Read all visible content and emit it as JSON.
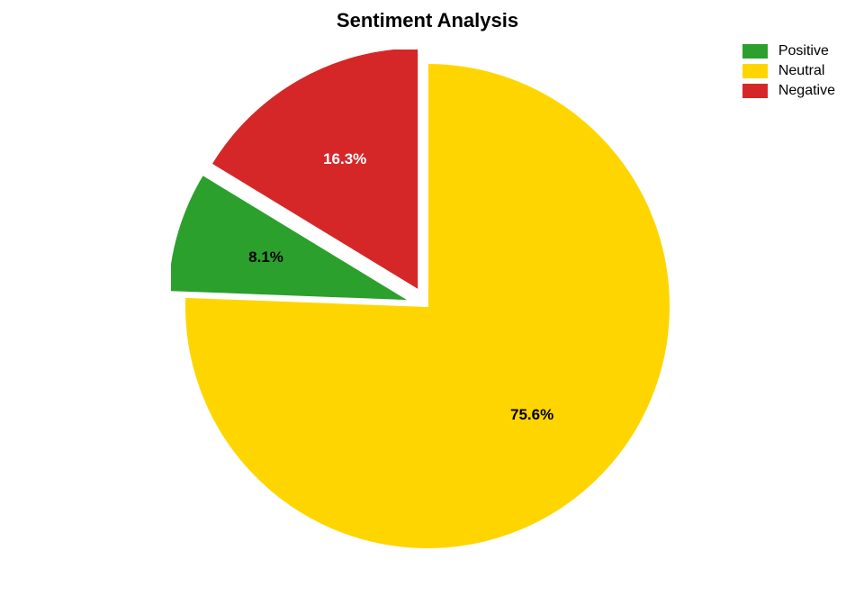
{
  "chart": {
    "type": "pie",
    "title": "Sentiment Analysis",
    "title_fontsize": 22,
    "title_fontweight": "bold",
    "background_color": "#ffffff",
    "slices": [
      {
        "label": "Positive",
        "value": 8.1,
        "display": "8.1%",
        "color": "#2ca02c",
        "label_color": "#000000",
        "exploded": true
      },
      {
        "label": "Neutral",
        "value": 75.6,
        "display": "75.6%",
        "color": "#ffd500",
        "label_color": "#000000",
        "exploded": false
      },
      {
        "label": "Negative",
        "value": 16.3,
        "display": "16.3%",
        "color": "#d62728",
        "label_color": "#ffffff",
        "exploded": true
      }
    ],
    "start_angle_deg": 90,
    "direction": "clockwise",
    "start_category": "Negative",
    "explode_radius": 20,
    "pie_radius": 270,
    "slice_stroke": "#ffffff",
    "slice_stroke_width": 2,
    "label_fontsize": 17,
    "legend": {
      "position": "top-right",
      "fontsize": 16,
      "swatch_width": 28,
      "swatch_height": 16,
      "items": [
        "Positive",
        "Neutral",
        "Negative"
      ]
    }
  }
}
